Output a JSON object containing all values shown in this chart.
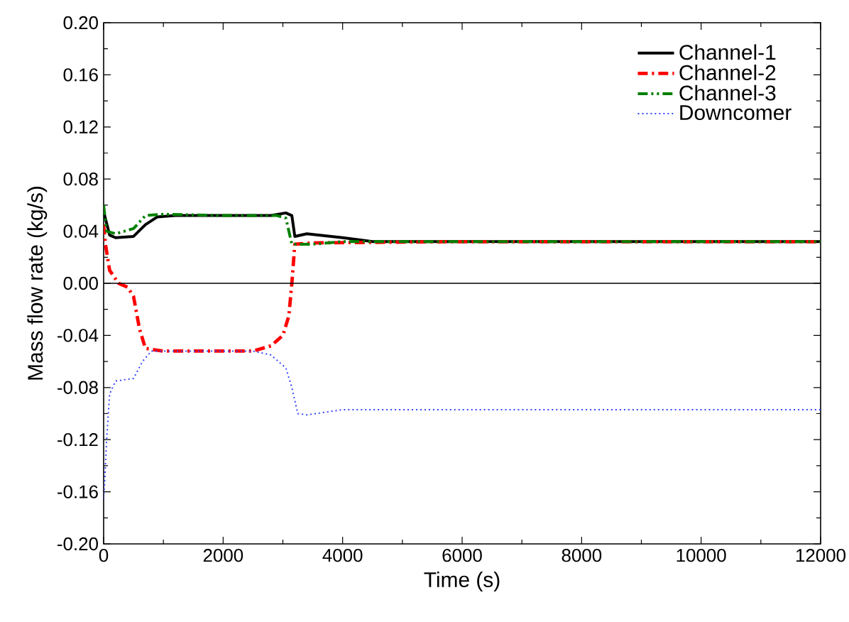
{
  "chart_data": {
    "type": "line",
    "xlabel": "Time (s)",
    "ylabel": "Mass flow rate (kg/s)",
    "xlim": [
      0,
      12000
    ],
    "ylim": [
      -0.2,
      0.2
    ],
    "xticks": [
      0,
      2000,
      4000,
      6000,
      8000,
      10000,
      12000
    ],
    "yticks": [
      {
        "value": -0.2,
        "label": "-0.20"
      },
      {
        "value": -0.16,
        "label": "-0.16"
      },
      {
        "value": -0.12,
        "label": "-0.12"
      },
      {
        "value": -0.08,
        "label": "-0.08"
      },
      {
        "value": -0.04,
        "label": "-0.04"
      },
      {
        "value": 0,
        "label": "0.00"
      },
      {
        "value": 0.04,
        "label": "0.04"
      },
      {
        "value": 0.08,
        "label": "0.08"
      },
      {
        "value": 0.12,
        "label": "0.12"
      },
      {
        "value": 0.16,
        "label": "0.16"
      },
      {
        "value": 0.2,
        "label": "0.20"
      }
    ],
    "grid": false,
    "legend": "top right",
    "marker": "none",
    "ref_lines": [
      {
        "axis": "y",
        "value": 0,
        "color": "#000000",
        "line_style": "solid"
      }
    ],
    "series": [
      {
        "name": "Channel-1",
        "color": "#000000",
        "line_style": "solid",
        "x": [
          0,
          100,
          200,
          500,
          700,
          900,
          1200,
          2000,
          2800,
          3050,
          3150,
          3200,
          3400,
          4000,
          4500,
          6000,
          8000,
          10000,
          12000
        ],
        "values": [
          0.055,
          0.037,
          0.035,
          0.036,
          0.045,
          0.051,
          0.052,
          0.052,
          0.052,
          0.054,
          0.052,
          0.036,
          0.038,
          0.035,
          0.032,
          0.032,
          0.032,
          0.032,
          0.032
        ]
      },
      {
        "name": "Channel-2",
        "color": "#ff0000",
        "line_style": "dashdot",
        "x": [
          0,
          30,
          100,
          250,
          400,
          500,
          600,
          700,
          1000,
          2000,
          2500,
          2800,
          3000,
          3100,
          3150,
          3200,
          3500,
          6000,
          8000,
          10000,
          12000
        ],
        "values": [
          0.045,
          0.03,
          0.01,
          0.0,
          -0.003,
          -0.01,
          -0.035,
          -0.05,
          -0.052,
          -0.052,
          -0.052,
          -0.048,
          -0.04,
          -0.025,
          0.0,
          0.03,
          0.031,
          0.032,
          0.032,
          0.032,
          0.032
        ]
      },
      {
        "name": "Channel-3",
        "color": "#008000",
        "line_style": "dashdotdot",
        "x": [
          0,
          50,
          200,
          500,
          700,
          1000,
          2000,
          2900,
          3050,
          3150,
          3500,
          4000,
          6000,
          8000,
          10000,
          12000
        ],
        "values": [
          0.06,
          0.04,
          0.038,
          0.042,
          0.052,
          0.053,
          0.052,
          0.052,
          0.05,
          0.03,
          0.03,
          0.032,
          0.032,
          0.032,
          0.032,
          0.032
        ]
      },
      {
        "name": "Downcomer",
        "color": "#3344ff",
        "line_style": "dotted",
        "x": [
          0,
          20,
          50,
          100,
          200,
          500,
          650,
          800,
          1500,
          2500,
          2800,
          3050,
          3150,
          3250,
          3400,
          4000,
          6000,
          8000,
          10000,
          12000
        ],
        "values": [
          -0.165,
          -0.15,
          -0.12,
          -0.085,
          -0.075,
          -0.073,
          -0.06,
          -0.052,
          -0.052,
          -0.052,
          -0.055,
          -0.065,
          -0.08,
          -0.1,
          -0.101,
          -0.097,
          -0.097,
          -0.097,
          -0.097,
          -0.097
        ]
      }
    ]
  }
}
